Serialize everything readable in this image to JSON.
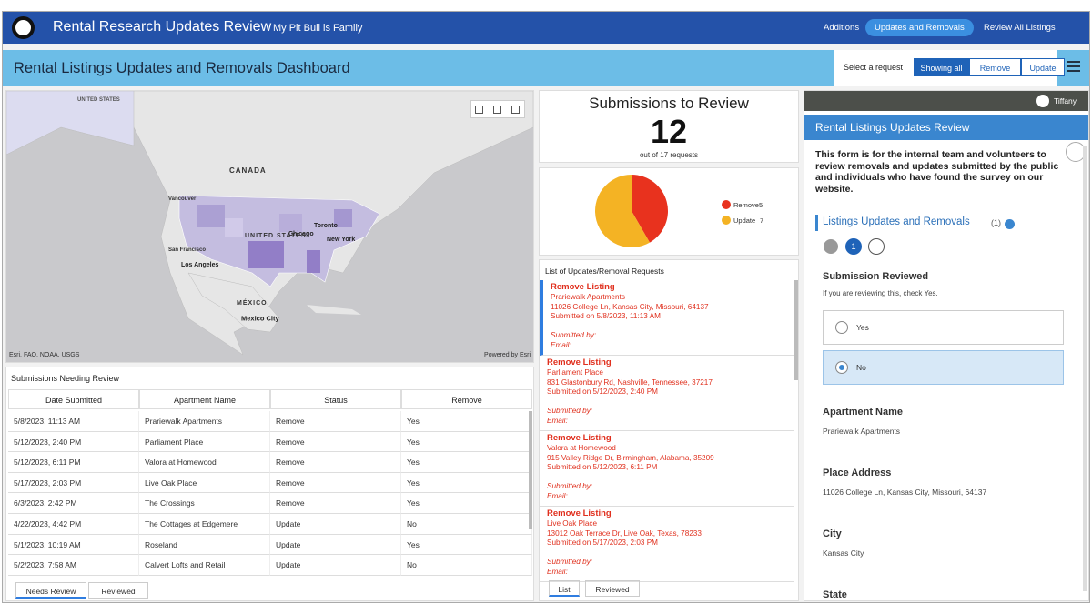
{
  "header": {
    "title": "Rental Research Updates Review",
    "subtitle": "My Pit Bull is Family",
    "nav": [
      "Additions",
      "Updates and Removals",
      "Review All Listings"
    ]
  },
  "dashboard": {
    "title": "Rental Listings Updates and Removals Dashboard",
    "filter_label": "Select a request",
    "filters": [
      "Showing all",
      "Remove",
      "Update"
    ]
  },
  "map": {
    "labels": [
      "UNITED STATES",
      "CANADA",
      "Vancouver",
      "Toronto",
      "Chicago",
      "New York",
      "UNITED STATES",
      "San Francisco",
      "Los Angeles",
      "MÉXICO",
      "Mexico City"
    ],
    "attribution": "Esri, FAO, NOAA, USGS",
    "powered": "Powered by Esri"
  },
  "table": {
    "title": "Submissions Needing Review",
    "columns": [
      "Date Submitted",
      "Apartment Name",
      "Status",
      "Remove"
    ],
    "rows": [
      [
        "5/8/2023, 11:13 AM",
        "Prariewalk Apartments",
        "Remove",
        "Yes"
      ],
      [
        "5/12/2023, 2:40 PM",
        "Parliament Place",
        "Remove",
        "Yes"
      ],
      [
        "5/12/2023, 6:11 PM",
        "Valora at Homewood",
        "Remove",
        "Yes"
      ],
      [
        "5/17/2023, 2:03 PM",
        "Live Oak Place",
        "Remove",
        "Yes"
      ],
      [
        "6/3/2023, 2:42 PM",
        "The Crossings",
        "Remove",
        "Yes"
      ],
      [
        "4/22/2023, 4:42 PM",
        "The Cottages at Edgemere",
        "Update",
        "No"
      ],
      [
        "5/1/2023, 10:19 AM",
        "Roseland",
        "Update",
        "Yes"
      ],
      [
        "5/2/2023, 7:58 AM",
        "Calvert Lofts and Retail",
        "Update",
        "No"
      ]
    ],
    "tabs": [
      "Needs Review",
      "Reviewed"
    ]
  },
  "summary": {
    "title": "Submissions to Review",
    "value": 12,
    "caption": "out of 17 requests"
  },
  "chart_data": {
    "type": "pie",
    "categories": [
      "Remove",
      "Update"
    ],
    "values": [
      5,
      7
    ],
    "colors": [
      "#e8321e",
      "#f4b324"
    ]
  },
  "list": {
    "title": "List of Updates/Removal Requests",
    "items": [
      {
        "heading": "Remove Listing",
        "name": "Prariewalk Apartments",
        "address": "11026 College Ln, Kansas City, Missouri, 64137",
        "submitted": "Submitted on 5/8/2023, 11:13 AM",
        "by": "Submitted by:",
        "email": "Email:"
      },
      {
        "heading": "Remove Listing",
        "name": "Parliament Place",
        "address": "831 Glastonbury Rd, Nashville, Tennessee, 37217",
        "submitted": "Submitted on 5/12/2023, 2:40 PM",
        "by": "Submitted by:",
        "email": "Email:"
      },
      {
        "heading": "Remove Listing",
        "name": "Valora at Homewood",
        "address": "915 Valley Ridge Dr, Birmingham, Alabama, 35209",
        "submitted": "Submitted on 5/12/2023, 6:11 PM",
        "by": "Submitted by:",
        "email": "Email:"
      },
      {
        "heading": "Remove Listing",
        "name": "Live Oak Place",
        "address": "13012 Oak Terrace Dr, Live Oak, Texas, 78233",
        "submitted": "Submitted on 5/17/2023, 2:03 PM",
        "by": "Submitted by:",
        "email": "Email:"
      }
    ],
    "tabs": [
      "List",
      "Reviewed"
    ]
  },
  "form": {
    "user": "Tiffany",
    "title": "Rental Listings Updates Review",
    "description": "This form is for the internal team and volunteers to review removals and updates submitted by the public and individuals who have found the survey on our website.",
    "section": "Listings Updates and Removals",
    "count": "(1)",
    "record": "1",
    "question": "Submission Reviewed",
    "hint": "If you are reviewing this, check Yes.",
    "options": [
      "Yes",
      "No"
    ],
    "fields": [
      {
        "label": "Apartment Name",
        "value": "Prariewalk Apartments"
      },
      {
        "label": "Place Address",
        "value": "11026 College Ln, Kansas City, Missouri, 64137"
      },
      {
        "label": "City",
        "value": "Kansas City"
      }
    ],
    "last_label": "State"
  }
}
